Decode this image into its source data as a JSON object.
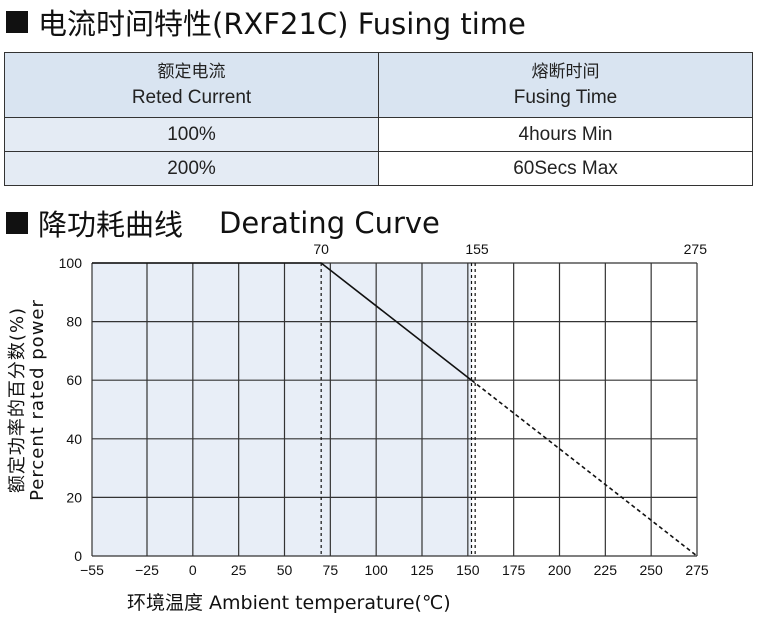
{
  "fusing_section": {
    "title": "电流时间特性(RXF21C) Fusing time",
    "headers": [
      {
        "zh": "额定电流",
        "en": "Reted Current"
      },
      {
        "zh": "熔断时间",
        "en": "Fusing Time"
      }
    ],
    "rows": [
      {
        "current": "100%",
        "time": "4hours Min"
      },
      {
        "current": "200%",
        "time": "60Secs Max"
      }
    ]
  },
  "derating_section": {
    "title_zh": "降功耗曲线",
    "title_en": "Derating Curve",
    "ylabel_zh": "额定功率的百分数(%)",
    "ylabel_en": "Percent rated power",
    "xlabel": "环境温度 Ambient temperature(℃)"
  },
  "chart_data": {
    "type": "line",
    "title": "Derating Curve",
    "xlabel": "环境温度 Ambient temperature(℃)",
    "ylabel": "额定功率的百分数(%) Percent rated power",
    "xlim": [
      -55,
      275
    ],
    "ylim": [
      0,
      100
    ],
    "x_ticks": [
      -55,
      -25,
      0,
      25,
      50,
      75,
      100,
      125,
      150,
      175,
      200,
      225,
      250,
      275
    ],
    "y_ticks": [
      0,
      20,
      40,
      60,
      80,
      100
    ],
    "top_markers": [
      70,
      155,
      275
    ],
    "grid": true,
    "shaded_region": {
      "x": [
        -55,
        152
      ],
      "color": "#e8eef7"
    },
    "reference_lines": [
      {
        "x": 70,
        "style": "dashed"
      },
      {
        "x": 152,
        "style": "dashed"
      },
      {
        "x": 154,
        "style": "dashed"
      }
    ],
    "series": [
      {
        "points": [
          [
            -55,
            100
          ],
          [
            70,
            100
          ],
          [
            152,
            60
          ]
        ],
        "style": "solid"
      },
      {
        "points": [
          [
            152,
            60
          ],
          [
            275,
            0
          ]
        ],
        "style": "dashed"
      }
    ],
    "colors": {
      "line": "#111111",
      "grid": "#333333",
      "fill": "#e8eef7"
    }
  }
}
